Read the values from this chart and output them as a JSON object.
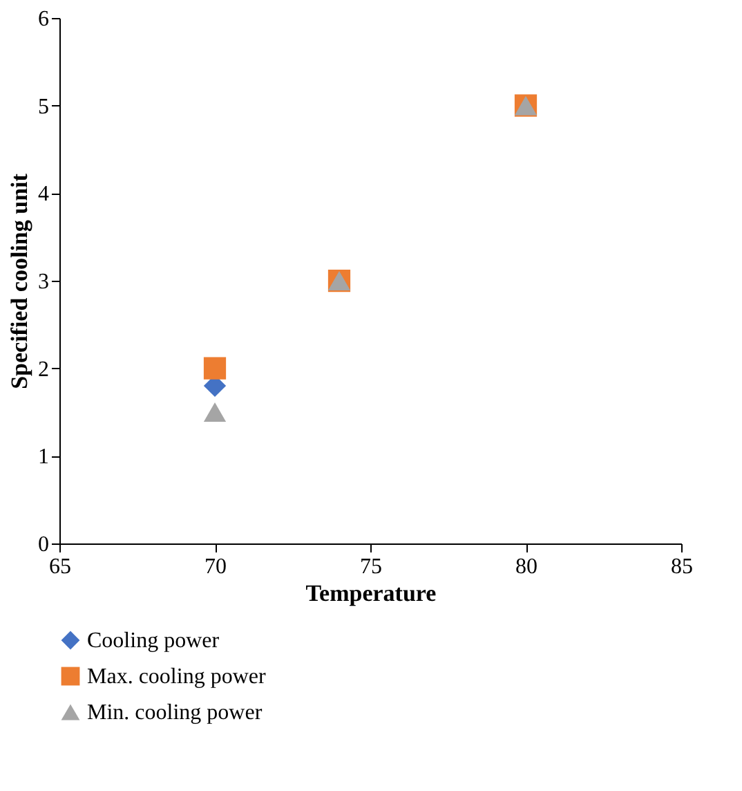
{
  "chart_data": {
    "type": "scatter",
    "xlabel": "Temperature",
    "ylabel": "Specified cooling unit",
    "x": [
      70,
      74,
      80
    ],
    "series": [
      {
        "name": "Cooling power",
        "color": "#4472c4",
        "marker": "diamond",
        "values": [
          1.8,
          null,
          null
        ]
      },
      {
        "name": "Max. cooling power",
        "color": "#ed7d31",
        "marker": "square",
        "values": [
          2,
          3,
          5
        ]
      },
      {
        "name": "Min. cooling power",
        "color": "#a5a5a5",
        "marker": "triangle",
        "values": [
          1.5,
          3,
          5
        ]
      }
    ],
    "xlim": [
      65,
      85
    ],
    "xticks": [
      65,
      70,
      75,
      80,
      85
    ],
    "ylim": [
      0,
      6
    ],
    "yticks": [
      0,
      1,
      2,
      3,
      4,
      5,
      6
    ],
    "grid": false,
    "legend": "bottom"
  }
}
